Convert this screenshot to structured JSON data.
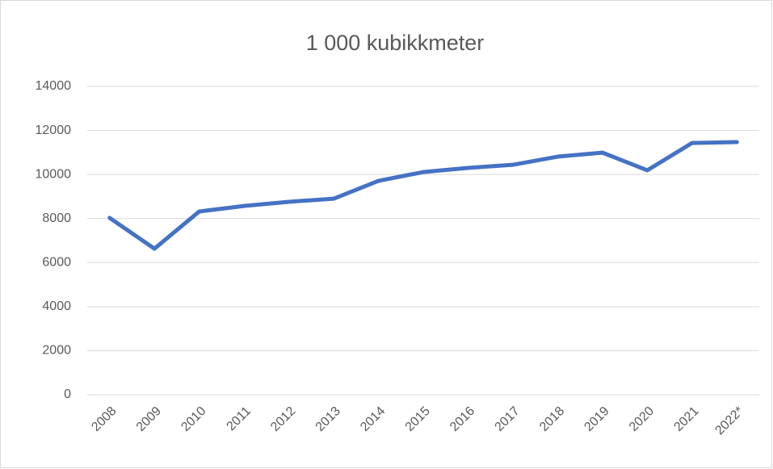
{
  "chart_data": {
    "type": "line",
    "title": "1 000 kubikkmeter",
    "categories": [
      "2008",
      "2009",
      "2010",
      "2011",
      "2012",
      "2013",
      "2014",
      "2015",
      "2016",
      "2017",
      "2018",
      "2019",
      "2020",
      "2021",
      "2022*"
    ],
    "series": [
      {
        "name": "1 000 kubikkmeter",
        "color": "#4472c4",
        "values": [
          8030,
          6630,
          8320,
          8570,
          8760,
          8900,
          9710,
          10110,
          10300,
          10440,
          10810,
          10990,
          10190,
          11430,
          11470
        ]
      }
    ],
    "ylim": [
      0,
      14000
    ],
    "yticks": [
      0,
      2000,
      4000,
      6000,
      8000,
      10000,
      12000,
      14000
    ],
    "grid": true
  }
}
